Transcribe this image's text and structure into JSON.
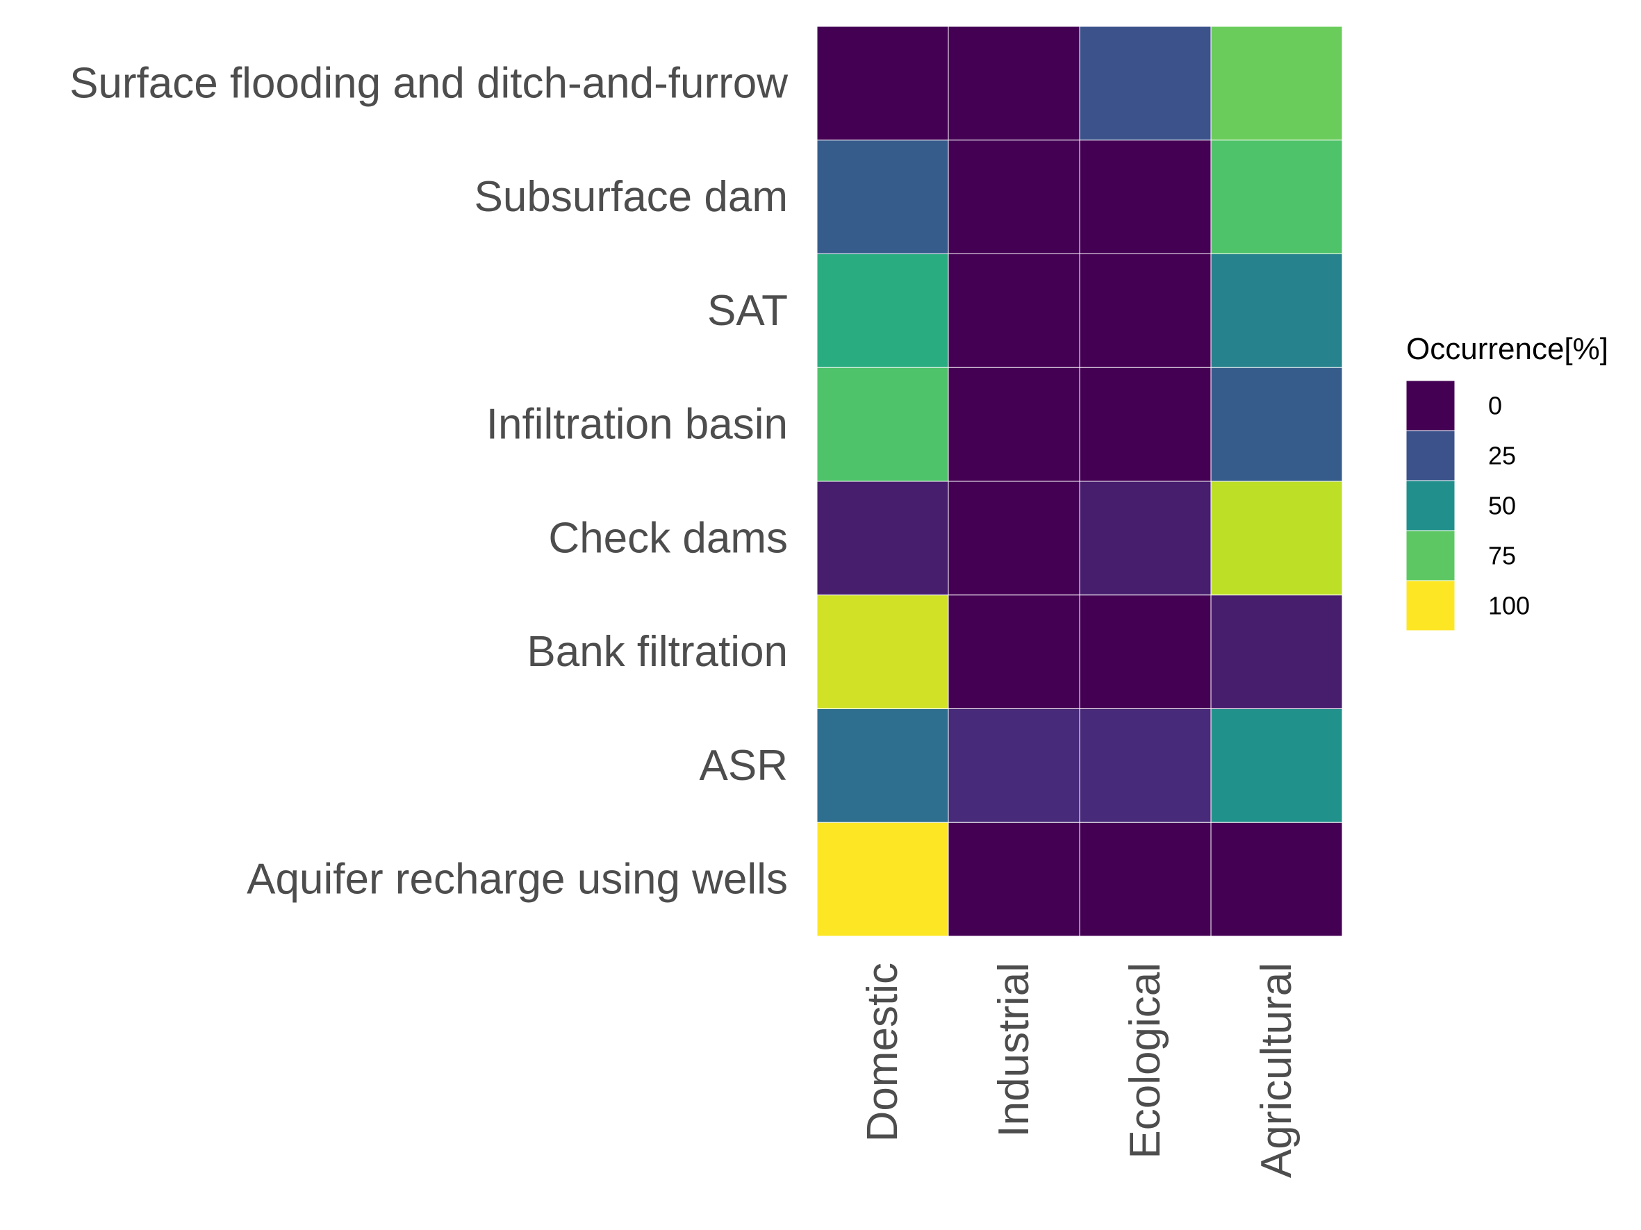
{
  "chart_data": {
    "type": "heatmap",
    "title": "",
    "xlabel": "",
    "ylabel": "",
    "columns": [
      "Domestic",
      "Industrial",
      "Ecological",
      "Agricultural"
    ],
    "rows": [
      "Surface flooding and ditch-and-furrow",
      "Subsurface dam",
      "SAT",
      "Infiltration basin",
      "Check dams",
      "Bank filtration",
      "ASR",
      "Aquifer recharge using wells"
    ],
    "values": [
      [
        0,
        0,
        25,
        77
      ],
      [
        29,
        0,
        0,
        72
      ],
      [
        62,
        0,
        0,
        44
      ],
      [
        72,
        0,
        0,
        29
      ],
      [
        8,
        0,
        8,
        90
      ],
      [
        93,
        0,
        0,
        8
      ],
      [
        36,
        12,
        12,
        51
      ],
      [
        100,
        0,
        0,
        0
      ]
    ],
    "color_range": [
      0,
      100
    ],
    "legend": {
      "title": "Occurrence[%]",
      "ticks": [
        "0",
        "25",
        "50",
        "75",
        "100"
      ],
      "colors": [
        "#440154",
        "#3b528b",
        "#21908c",
        "#5dc863",
        "#fde725"
      ],
      "position": "right"
    },
    "palette": {
      "stops": [
        [
          0,
          "#440154"
        ],
        [
          0.1,
          "#482475"
        ],
        [
          0.2,
          "#414487"
        ],
        [
          0.3,
          "#355f8d"
        ],
        [
          0.4,
          "#2a788e"
        ],
        [
          0.5,
          "#21908c"
        ],
        [
          0.6,
          "#22a884"
        ],
        [
          0.7,
          "#44bf70"
        ],
        [
          0.8,
          "#7ad151"
        ],
        [
          0.9,
          "#bddf26"
        ],
        [
          1,
          "#fde725"
        ]
      ]
    }
  }
}
